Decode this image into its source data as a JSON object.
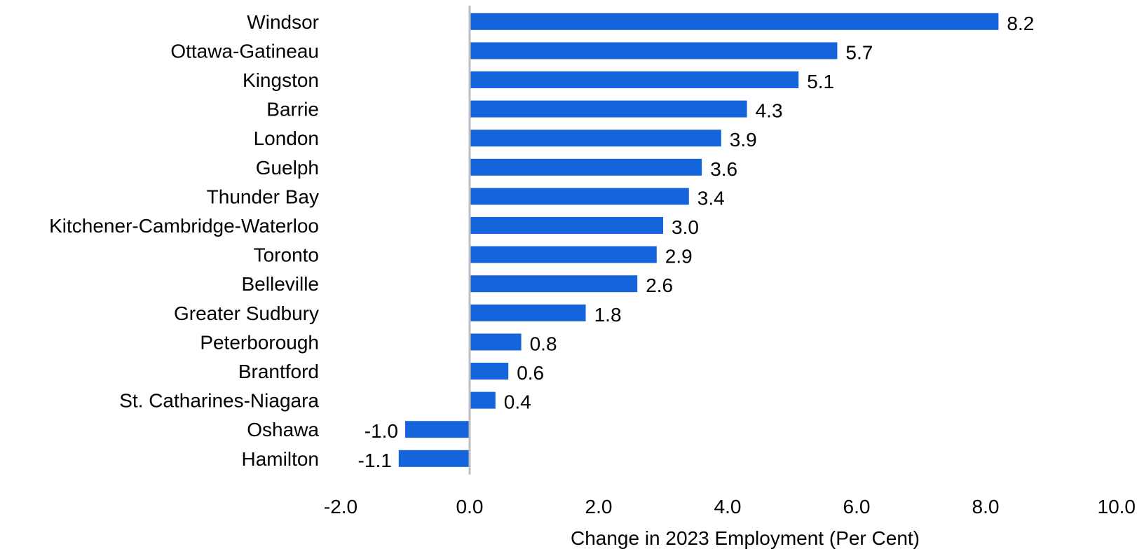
{
  "chart_data": {
    "type": "bar",
    "orientation": "horizontal",
    "categories": [
      "Windsor",
      "Ottawa-Gatineau",
      "Kingston",
      "Barrie",
      "London",
      "Guelph",
      "Thunder Bay",
      "Kitchener-Cambridge-Waterloo",
      "Toronto",
      "Belleville",
      "Greater Sudbury",
      "Peterborough",
      "Brantford",
      "St. Catharines-Niagara",
      "Oshawa",
      "Hamilton"
    ],
    "values": [
      8.2,
      5.7,
      5.1,
      4.3,
      3.9,
      3.6,
      3.4,
      3.0,
      2.9,
      2.6,
      1.8,
      0.8,
      0.6,
      0.4,
      -1.0,
      -1.1
    ],
    "value_labels": [
      "8.2",
      "5.7",
      "5.1",
      "4.3",
      "3.9",
      "3.6",
      "3.4",
      "3.0",
      "2.9",
      "2.6",
      "1.8",
      "0.8",
      "0.6",
      "0.4",
      "-1.0",
      "-1.1"
    ],
    "xlabel": "Change in 2023 Employment (Per Cent)",
    "xlim": [
      -2.0,
      10.0
    ],
    "x_ticks": [
      -2.0,
      0.0,
      2.0,
      4.0,
      6.0,
      8.0,
      10.0
    ],
    "x_tick_labels": [
      "-2.0",
      "0.0",
      "2.0",
      "4.0",
      "6.0",
      "8.0",
      "10.0"
    ],
    "grid": false,
    "legend": "none",
    "colors": {
      "bar": "#1464DC",
      "zero_line": "#BFBFBF",
      "text": "#000000"
    }
  }
}
